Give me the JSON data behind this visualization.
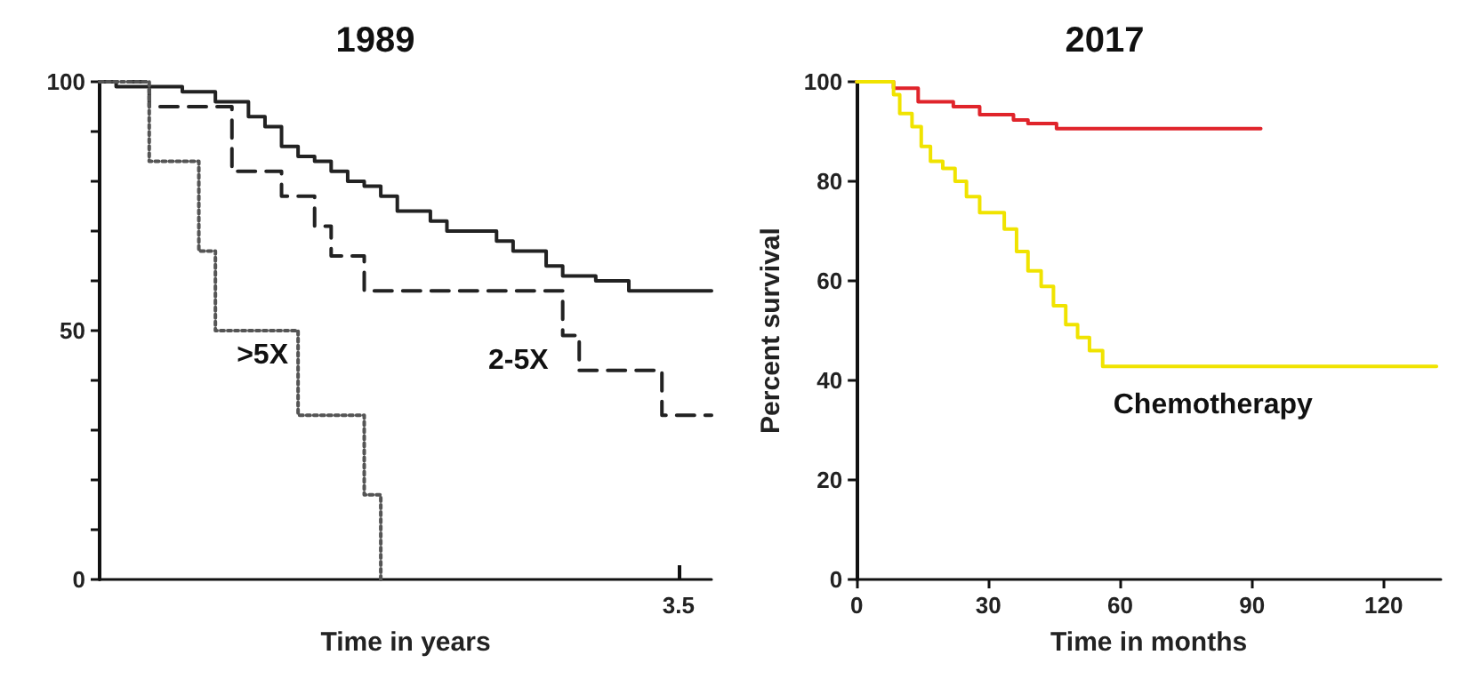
{
  "chart_data": [
    {
      "type": "step",
      "title": "1989",
      "xlabel": "Time in years",
      "categories": [
        null,
        null,
        null,
        null,
        null,
        null,
        null,
        null,
        null,
        null,
        null,
        null,
        null,
        null,
        null,
        null,
        null,
        null,
        null,
        null,
        null,
        null,
        null,
        null,
        null,
        null,
        null,
        null,
        null,
        null,
        null,
        null,
        null,
        null,
        null,
        "3.5",
        null,
        null
      ],
      "ylim": [
        0,
        100
      ],
      "yticks": [
        0,
        {
          "value": 10,
          "label": null
        },
        {
          "value": 20,
          "label": null
        },
        {
          "value": 30,
          "label": null
        },
        {
          "value": 40,
          "label": null
        },
        50,
        {
          "value": 60,
          "label": null
        },
        {
          "value": 70,
          "label": null
        },
        {
          "value": 80,
          "label": null
        },
        {
          "value": 90,
          "label": null
        },
        100
      ],
      "grid": false,
      "legend": false,
      "marker": "none",
      "series": [
        {
          "color": "#222222",
          "line_style": "solid",
          "values": [
            100,
            99,
            99,
            99,
            99,
            98,
            98,
            96,
            96,
            93,
            91,
            87,
            85,
            84,
            82,
            80,
            79,
            77,
            74,
            74,
            72,
            70,
            70,
            70,
            68,
            66,
            66,
            63,
            61,
            61,
            60,
            60,
            58,
            58,
            58,
            58,
            58,
            58
          ]
        },
        {
          "name": "2-5X",
          "color": "#222222",
          "line_style": "dashed",
          "values": [
            100,
            100,
            100,
            95,
            95,
            95,
            95,
            95,
            82,
            82,
            82,
            77,
            77,
            71,
            65,
            65,
            58,
            58,
            58,
            58,
            58,
            58,
            58,
            58,
            58,
            58,
            58,
            58,
            49,
            42,
            42,
            42,
            42,
            42,
            33,
            33,
            33,
            33
          ]
        },
        {
          "name": ">5X",
          "color": "#555555",
          "line_style": "dotted",
          "values": [
            100,
            100,
            100,
            84,
            84,
            84,
            66,
            50,
            50,
            50,
            50,
            50,
            33,
            33,
            33,
            33,
            17,
            0,
            null,
            null,
            null,
            null,
            null,
            null,
            null,
            null,
            null,
            null,
            null,
            null,
            null,
            null,
            null,
            null,
            null,
            null,
            null,
            null
          ]
        }
      ]
    },
    {
      "type": "step",
      "title": "2017",
      "xlabel": "Time in months",
      "ylabel": "Percent survival",
      "xlim": [
        0,
        133
      ],
      "xticks": [
        0,
        30,
        60,
        90,
        120
      ],
      "ylim": [
        0,
        100
      ],
      "yticks": [
        0,
        20,
        40,
        60,
        80,
        100
      ],
      "grid": false,
      "legend": false,
      "marker": "none",
      "series": [
        {
          "color": "#e0242b",
          "line_style": "solid",
          "x": [
            0,
            8.4,
            14,
            22,
            28,
            35.7,
            39,
            45.5,
            92
          ],
          "values": [
            100,
            98.7,
            96,
            95,
            93.4,
            92.3,
            91.6,
            90.6,
            90.6
          ]
        },
        {
          "name": "Chemotherapy",
          "color": "#f0e300",
          "line_style": "solid",
          "x": [
            0,
            7,
            8.4,
            9.8,
            12.6,
            14.7,
            16.8,
            19.6,
            22.4,
            25,
            28,
            33.6,
            36.4,
            39,
            42,
            44.8,
            47.6,
            50.3,
            53,
            56,
            132
          ],
          "values": [
            100,
            100,
            97.4,
            93.6,
            91,
            87,
            84,
            82.6,
            80,
            76.9,
            73.7,
            70.4,
            65.9,
            62,
            58.9,
            55,
            51.2,
            48.6,
            46,
            42.8,
            42.8
          ]
        }
      ]
    }
  ]
}
